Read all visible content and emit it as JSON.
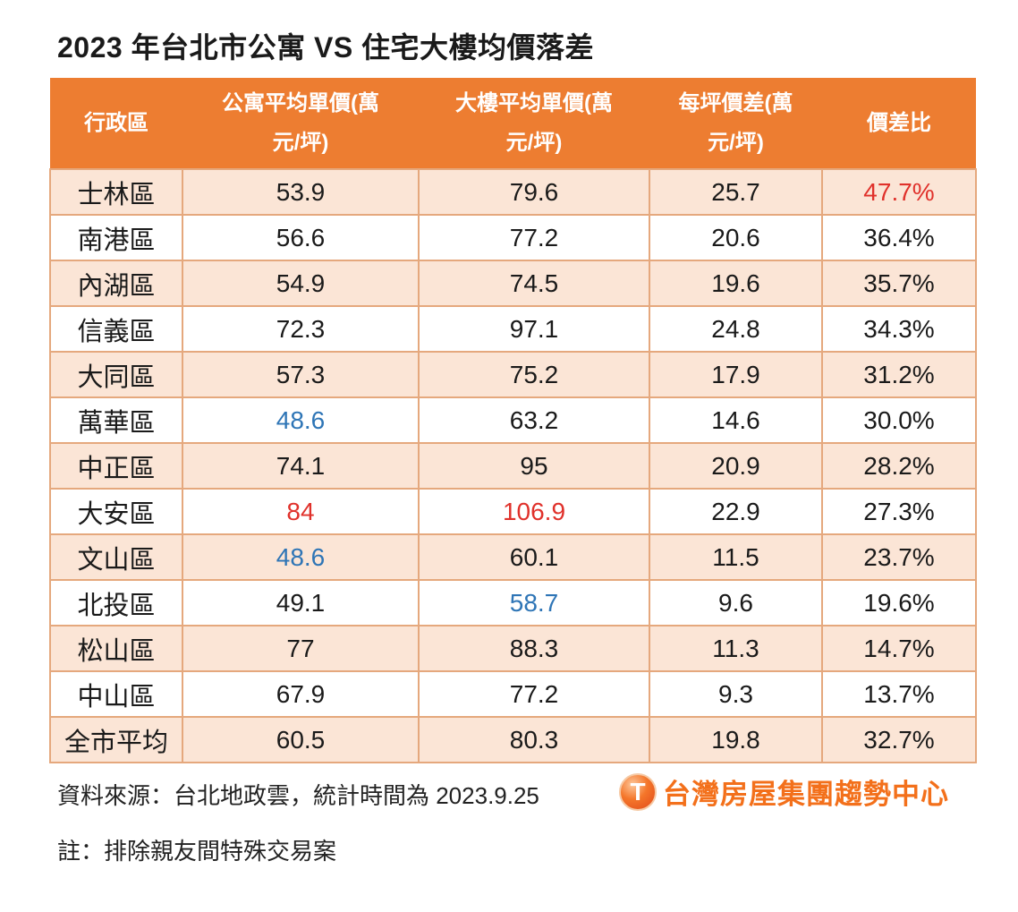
{
  "title": "2023 年台北市公寓 VS 住宅大樓均價落差",
  "colors": {
    "header_bg": "#ED7D31",
    "header_text": "#FFFFFF",
    "row_alt_bg": "#FBE5D6",
    "border": "#E5A87D",
    "red": "#E0312B",
    "blue": "#2E75B6",
    "text": "#1A1A1A",
    "logo_orange": "#F3701B"
  },
  "table": {
    "columns": [
      {
        "full": "行政區",
        "line1": "行政區",
        "line2": ""
      },
      {
        "full": "公寓平均單價(萬元/坪)",
        "line1": "公寓平均單價(萬",
        "line2": "元/坪)"
      },
      {
        "full": "大樓平均單價(萬元/坪)",
        "line1": "大樓平均單價(萬",
        "line2": "元/坪)"
      },
      {
        "full": "每坪價差(萬元/坪)",
        "line1": "每坪價差(萬",
        "line2": "元/坪)"
      },
      {
        "full": "價差比",
        "line1": "價差比",
        "line2": ""
      }
    ],
    "rows": [
      {
        "cells": [
          "士林區",
          "53.9",
          "79.6",
          "25.7",
          "47.7%"
        ],
        "colors": [
          null,
          null,
          null,
          null,
          "red"
        ]
      },
      {
        "cells": [
          "南港區",
          "56.6",
          "77.2",
          "20.6",
          "36.4%"
        ],
        "colors": [
          null,
          null,
          null,
          null,
          null
        ]
      },
      {
        "cells": [
          "內湖區",
          "54.9",
          "74.5",
          "19.6",
          "35.7%"
        ],
        "colors": [
          null,
          null,
          null,
          null,
          null
        ]
      },
      {
        "cells": [
          "信義區",
          "72.3",
          "97.1",
          "24.8",
          "34.3%"
        ],
        "colors": [
          null,
          null,
          null,
          null,
          null
        ]
      },
      {
        "cells": [
          "大同區",
          "57.3",
          "75.2",
          "17.9",
          "31.2%"
        ],
        "colors": [
          null,
          null,
          null,
          null,
          null
        ]
      },
      {
        "cells": [
          "萬華區",
          "48.6",
          "63.2",
          "14.6",
          "30.0%"
        ],
        "colors": [
          null,
          "blue",
          null,
          null,
          null
        ]
      },
      {
        "cells": [
          "中正區",
          "74.1",
          "95",
          "20.9",
          "28.2%"
        ],
        "colors": [
          null,
          null,
          null,
          null,
          null
        ]
      },
      {
        "cells": [
          "大安區",
          "84",
          "106.9",
          "22.9",
          "27.3%"
        ],
        "colors": [
          null,
          "red",
          "red",
          null,
          null
        ]
      },
      {
        "cells": [
          "文山區",
          "48.6",
          "60.1",
          "11.5",
          "23.7%"
        ],
        "colors": [
          null,
          "blue",
          null,
          null,
          null
        ]
      },
      {
        "cells": [
          "北投區",
          "49.1",
          "58.7",
          "9.6",
          "19.6%"
        ],
        "colors": [
          null,
          null,
          "blue",
          null,
          null
        ]
      },
      {
        "cells": [
          "松山區",
          "77",
          "88.3",
          "11.3",
          "14.7%"
        ],
        "colors": [
          null,
          null,
          null,
          null,
          null
        ]
      },
      {
        "cells": [
          "中山區",
          "67.9",
          "77.2",
          "9.3",
          "13.7%"
        ],
        "colors": [
          null,
          null,
          null,
          null,
          null
        ]
      },
      {
        "cells": [
          "全市平均",
          "60.5",
          "80.3",
          "19.8",
          "32.7%"
        ],
        "colors": [
          null,
          null,
          null,
          null,
          null
        ]
      }
    ]
  },
  "footer": {
    "source": "資料來源：台北地政雲，統計時間為 2023.9.25",
    "logo_icon": "T",
    "logo_text": "台灣房屋集團趨勢中心",
    "note": "註：排除親友間特殊交易案"
  },
  "chart_data": {
    "type": "table",
    "title": "2023 年台北市公寓 VS 住宅大樓均價落差",
    "columns": [
      "行政區",
      "公寓平均單價(萬元/坪)",
      "大樓平均單價(萬元/坪)",
      "每坪價差(萬元/坪)",
      "價差比"
    ],
    "categories": [
      "士林區",
      "南港區",
      "內湖區",
      "信義區",
      "大同區",
      "萬華區",
      "中正區",
      "大安區",
      "文山區",
      "北投區",
      "松山區",
      "中山區",
      "全市平均"
    ],
    "series": [
      {
        "name": "公寓平均單價(萬元/坪)",
        "values": [
          53.9,
          56.6,
          54.9,
          72.3,
          57.3,
          48.6,
          74.1,
          84,
          48.6,
          49.1,
          77,
          67.9,
          60.5
        ]
      },
      {
        "name": "大樓平均單價(萬元/坪)",
        "values": [
          79.6,
          77.2,
          74.5,
          97.1,
          75.2,
          63.2,
          95,
          106.9,
          60.1,
          58.7,
          88.3,
          77.2,
          80.3
        ]
      },
      {
        "name": "每坪價差(萬元/坪)",
        "values": [
          25.7,
          20.6,
          19.6,
          24.8,
          17.9,
          14.6,
          20.9,
          22.9,
          11.5,
          9.6,
          11.3,
          9.3,
          19.8
        ]
      },
      {
        "name": "價差比(%)",
        "values": [
          47.7,
          36.4,
          35.7,
          34.3,
          31.2,
          30.0,
          28.2,
          27.3,
          23.7,
          19.6,
          14.7,
          13.7,
          32.7
        ]
      }
    ],
    "annotations": {
      "highest_apartment_price": "大安區 84 (紅字)",
      "highest_building_price": "大安區 106.9 (紅字)",
      "lowest_apartment_price": "萬華區/文山區 48.6 (藍字)",
      "lowest_building_price": "北投區 58.7 (藍字)",
      "highest_gap_ratio": "士林區 47.7% (紅字)"
    },
    "source": "資料來源：台北地政雲，統計時間為 2023.9.25",
    "note": "註：排除親友間特殊交易案"
  }
}
